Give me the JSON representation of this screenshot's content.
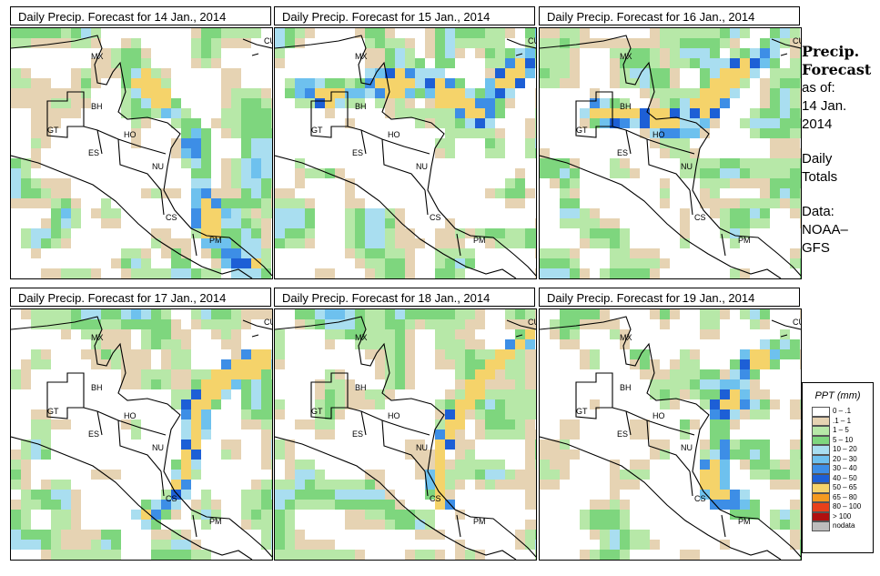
{
  "panels": [
    {
      "title": "Daily Precip. Forecast for  14 Jan., 2014"
    },
    {
      "title": "Daily Precip. Forecast for  15 Jan., 2014"
    },
    {
      "title": "Daily Precip. Forecast for  16 Jan., 2014"
    },
    {
      "title": "Daily Precip. Forecast for  17 Jan., 2014"
    },
    {
      "title": "Daily Precip. Forecast for  18 Jan., 2014"
    },
    {
      "title": "Daily Precip. Forecast for  19 Jan., 2014"
    }
  ],
  "map_labels": [
    "MX",
    "CU",
    "BH",
    "GT",
    "HO",
    "ES",
    "NU",
    "CS",
    "PM"
  ],
  "side": {
    "title_line1": "Precip.",
    "title_line2": "Forecast",
    "asof_line1": "as of:",
    "asof_line2": "14 Jan.",
    "asof_line3": "2014",
    "daily_line1": "Daily",
    "daily_line2": "Totals",
    "data_line1": "Data:",
    "data_line2": "NOAA–",
    "data_line3": "GFS"
  },
  "legend": {
    "title": "PPT (mm)",
    "items": [
      {
        "label": "0 – .1",
        "color": "#ffffff"
      },
      {
        "label": ".1 – 1",
        "color": "#e6d3b3"
      },
      {
        "label": "1 – 5",
        "color": "#b7e8a8"
      },
      {
        "label": "5 – 10",
        "color": "#7ed67e"
      },
      {
        "label": "10 – 20",
        "color": "#a9def0"
      },
      {
        "label": "20 – 30",
        "color": "#6ec1ee"
      },
      {
        "label": "30 – 40",
        "color": "#3d8ee6"
      },
      {
        "label": "40 – 50",
        "color": "#1d5fd6"
      },
      {
        "label": "50 – 65",
        "color": "#f5d36a"
      },
      {
        "label": "65 – 80",
        "color": "#f59a20"
      },
      {
        "label": "80 – 100",
        "color": "#e8401a"
      },
      {
        "label": "> 100",
        "color": "#b01010"
      },
      {
        "label": "nodata",
        "color": "#bdbdbd"
      }
    ]
  }
}
